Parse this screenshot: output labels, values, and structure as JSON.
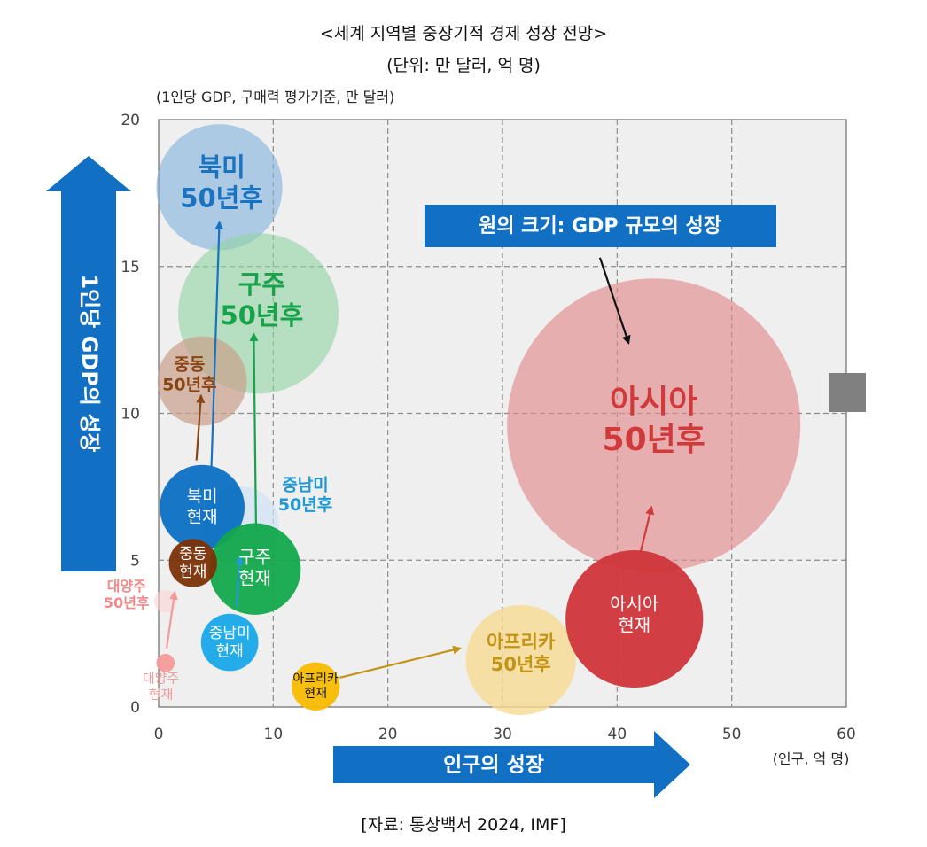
{
  "chart_data": {
    "type": "scatter",
    "title": "<세계 지역별 중장기적 경제 성장 전망>",
    "subtitle": "(단위: 만 달러, 억 명)",
    "ylabel_unit": "(1인당 GDP, 구매력 평가기준, 만 달러)",
    "xlabel_unit": "(인구, 억 명)",
    "x_axis_title": "인구의 성장",
    "y_axis_title": "1인당 GDP의 성장",
    "size_note": "원의 크기: GDP 규모의 성장",
    "source": "[자료: 통상백서 2024, IMF]",
    "xlim": [
      0,
      60
    ],
    "ylim": [
      0,
      20
    ],
    "x_ticks": [
      "0",
      "10",
      "20",
      "30",
      "40",
      "50",
      "60"
    ],
    "y_ticks": [
      "0",
      "5",
      "10",
      "15",
      "20"
    ],
    "grid": "dashed",
    "points": [
      {
        "label": [
          "북미",
          "50년후"
        ],
        "x": 5.3,
        "y": 17.7,
        "r": 5.5,
        "color": "#7fb0dc",
        "opacity": 0.6,
        "text_color": "#1a73c0",
        "label_x": 5.5,
        "label_y": 17.8,
        "bold": true,
        "size": 29
      },
      {
        "label": [
          "구주",
          "50년후"
        ],
        "x": 8.7,
        "y": 13.4,
        "r": 7.0,
        "color": "#8fd4a4",
        "opacity": 0.6,
        "text_color": "#17a34a",
        "label_x": 9.0,
        "label_y": 13.8,
        "bold": true,
        "size": 29
      },
      {
        "label": [
          "중동",
          "50년후"
        ],
        "x": 3.8,
        "y": 11.1,
        "r": 3.9,
        "color": "#c9a08a",
        "opacity": 0.7,
        "text_color": "#8a4512",
        "label_x": 2.7,
        "label_y": 11.3,
        "bold": true,
        "size": 19
      },
      {
        "label": [
          "아시아",
          "50년후"
        ],
        "x": 43.2,
        "y": 9.6,
        "r": 12.8,
        "color": "#e08a8a",
        "opacity": 0.65,
        "text_color": "#d03a3a",
        "label_x": 43.2,
        "label_y": 9.7,
        "bold": true,
        "size": 36
      },
      {
        "label": [
          "중남미",
          "50년후"
        ],
        "x": 7.1,
        "y": 6.2,
        "r": 3.4,
        "color": "#cfe4f5",
        "opacity": 0.7,
        "text_color": "#1e9ad6",
        "label_x": 12.8,
        "label_y": 7.2,
        "bold": true,
        "size": 19
      },
      {
        "label": [
          "북미",
          "현재"
        ],
        "x": 3.8,
        "y": 6.8,
        "r": 3.7,
        "color": "#0b6fc2",
        "opacity": 0.95,
        "text_color": "#ffffff",
        "label_x": 3.8,
        "label_y": 6.8,
        "bold": false,
        "size": 19
      },
      {
        "label": [
          "구주",
          "현재"
        ],
        "x": 8.4,
        "y": 4.7,
        "r": 4.0,
        "color": "#12a84b",
        "opacity": 0.95,
        "text_color": "#ffffff",
        "label_x": 8.4,
        "label_y": 4.7,
        "bold": false,
        "size": 20
      },
      {
        "label": [
          "중동",
          "현재"
        ],
        "x": 3.0,
        "y": 4.9,
        "r": 2.1,
        "color": "#7b3206",
        "opacity": 0.95,
        "text_color": "#ffffff",
        "label_x": 3.0,
        "label_y": 4.9,
        "bold": false,
        "size": 17
      },
      {
        "label": [
          "대양주",
          "50년후"
        ],
        "x": 0.6,
        "y": 3.6,
        "r": 1.0,
        "color": "#fbd3d3",
        "opacity": 0.6,
        "text_color": "#f08a8a",
        "label_x": -2.8,
        "label_y": 3.8,
        "bold": true,
        "size": 16
      },
      {
        "label": [
          "중남미",
          "현재"
        ],
        "x": 6.2,
        "y": 2.2,
        "r": 2.5,
        "color": "#17a8e8",
        "opacity": 0.95,
        "text_color": "#ffffff",
        "label_x": 6.2,
        "label_y": 2.2,
        "bold": false,
        "size": 17
      },
      {
        "label": [
          "대양주",
          "현재"
        ],
        "x": 0.6,
        "y": 1.5,
        "r": 0.8,
        "color": "#f49a9a",
        "opacity": 0.95,
        "text_color": "#f49a9a",
        "label_x": 0.2,
        "label_y": 0.7,
        "bold": false,
        "size": 15
      },
      {
        "label": [
          "아프리카",
          "현재"
        ],
        "x": 13.7,
        "y": 0.7,
        "r": 2.1,
        "color": "#f8bb00",
        "opacity": 0.95,
        "text_color": "#111111",
        "label_x": 13.7,
        "label_y": 0.7,
        "bold": false,
        "size": 14
      },
      {
        "label": [
          "아프리카",
          "50년후"
        ],
        "x": 31.6,
        "y": 1.6,
        "r": 4.8,
        "color": "#f6db92",
        "opacity": 0.8,
        "text_color": "#c49414",
        "label_x": 31.6,
        "label_y": 1.8,
        "bold": true,
        "size": 21
      },
      {
        "label": [
          "아시아",
          "현재"
        ],
        "x": 41.5,
        "y": 3.0,
        "r": 6.0,
        "color": "#cf353a",
        "opacity": 0.95,
        "text_color": "#ffffff",
        "label_x": 41.5,
        "label_y": 3.1,
        "bold": false,
        "size": 20
      }
    ],
    "arrows": [
      {
        "from": [
          4.6,
          8.1
        ],
        "to": [
          5.3,
          16.5
        ],
        "color": "#1a73c0"
      },
      {
        "from": [
          8.5,
          6.1
        ],
        "to": [
          8.3,
          12.7
        ],
        "color": "#17a34a"
      },
      {
        "from": [
          3.3,
          8.4
        ],
        "to": [
          3.7,
          10.6
        ],
        "color": "#8a4512"
      },
      {
        "from": [
          0.7,
          2.0
        ],
        "to": [
          1.4,
          3.9
        ],
        "color": "#f49a9a"
      },
      {
        "from": [
          6.8,
          3.4
        ],
        "to": [
          7.1,
          5.1
        ],
        "color": "#1e9ad6"
      },
      {
        "from": [
          15.8,
          1.0
        ],
        "to": [
          26.3,
          2.0
        ],
        "color": "#c49414"
      },
      {
        "from": [
          42.0,
          5.2
        ],
        "to": [
          43.0,
          6.8
        ],
        "color": "#d03a3a"
      },
      {
        "from": [
          38.5,
          15.3
        ],
        "to": [
          41.0,
          12.4
        ],
        "color": "#111111"
      }
    ]
  }
}
